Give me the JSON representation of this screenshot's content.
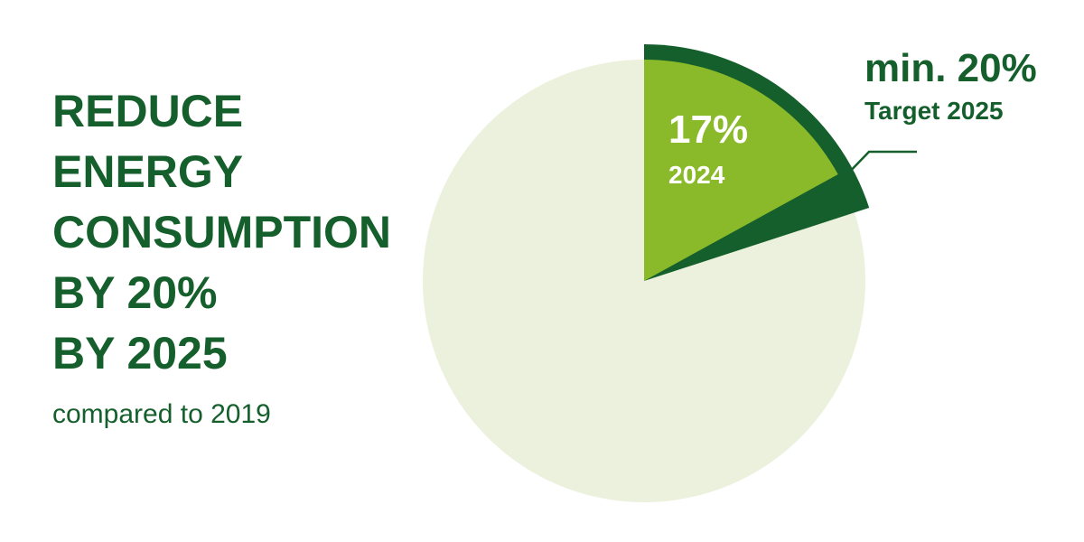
{
  "chart_data": {
    "type": "pie",
    "title": [
      "REDUCE",
      "ENERGY",
      "CONSUMPTION",
      "BY 20%",
      "BY 2025"
    ],
    "subtitle": "compared to 2019",
    "background_color": "#ebf1dc",
    "series": [
      {
        "name": "Target 2025",
        "color": "#155f2c",
        "values": [
          20
        ],
        "value_labels": [
          "min. 20%"
        ]
      },
      {
        "name": "2024",
        "color": "#8aba2a",
        "values": [
          17
        ],
        "value_labels": [
          "17%"
        ]
      }
    ]
  }
}
